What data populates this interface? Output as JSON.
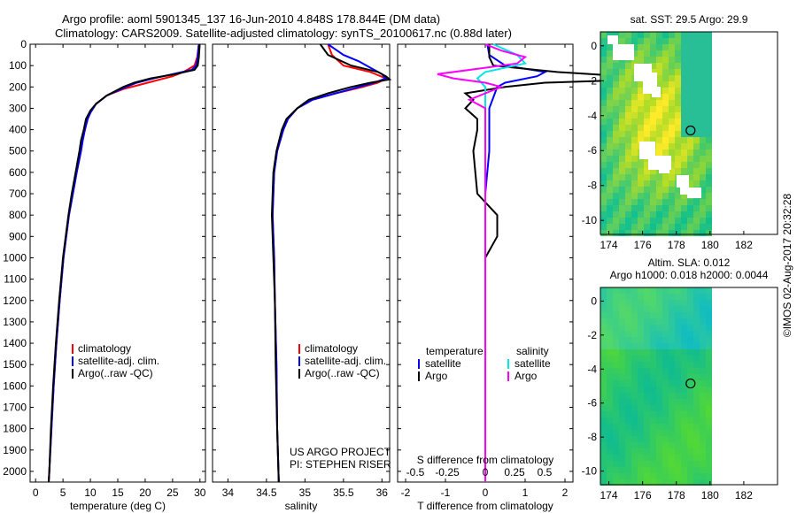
{
  "header": {
    "title_line1": "Argo profile: aoml 5901345_137 16-Jun-2010 4.848S 178.844E (DM data)",
    "title_line2": "Climatology: CARS2009. Satellite-adjusted climatology: synTS_20100617.nc (0.88d later)"
  },
  "depth_ticks": [
    0,
    100,
    200,
    300,
    400,
    500,
    600,
    700,
    800,
    900,
    1000,
    1100,
    1200,
    1300,
    1400,
    1500,
    1600,
    1700,
    1800,
    1900,
    2000
  ],
  "colors": {
    "climatology": "#ff0000",
    "satellite": "#0000ff",
    "argo": "#000000",
    "sat_salinity": "#00e5e5",
    "argo_salinity": "#ff00ff"
  },
  "chart_data": [
    {
      "type": "line",
      "panel": "temperature",
      "xlabel": "temperature (deg C)",
      "xlim": [
        -1,
        31
      ],
      "xticks": [
        0,
        5,
        10,
        15,
        20,
        25,
        30
      ],
      "ylim": [
        2050,
        0
      ],
      "legend": [
        "climatology",
        "satellite-adj. clim.",
        "Argo(..raw -QC)"
      ],
      "series": [
        {
          "name": "climatology",
          "depth": [
            0,
            20,
            60,
            100,
            130,
            150,
            170,
            190,
            210,
            240,
            280,
            320,
            350,
            400,
            450,
            500,
            600,
            700,
            800,
            900,
            1000,
            1200,
            1400,
            1600,
            1800,
            2000,
            2050
          ],
          "values": [
            29.8,
            29.7,
            29.5,
            29.0,
            27.0,
            25.0,
            22.0,
            19.0,
            16.0,
            13.0,
            11.0,
            10.0,
            9.5,
            9.0,
            8.6,
            8.3,
            7.5,
            6.8,
            6.1,
            5.6,
            5.1,
            4.4,
            3.8,
            3.3,
            2.9,
            2.5,
            2.4
          ]
        },
        {
          "name": "satellite-adj. clim.",
          "depth": [
            0,
            20,
            60,
            100,
            120,
            140,
            160,
            180,
            200,
            240,
            280,
            320,
            350,
            400,
            450,
            500,
            600,
            700,
            800,
            900,
            1000,
            1200,
            1400,
            1600,
            1800,
            2000,
            2050
          ],
          "values": [
            29.8,
            29.7,
            29.6,
            29.3,
            28.5,
            25.0,
            21.5,
            18.5,
            16.5,
            13.0,
            11.0,
            10.0,
            9.5,
            9.0,
            8.6,
            8.3,
            7.5,
            6.8,
            6.1,
            5.6,
            5.1,
            4.4,
            3.8,
            3.3,
            2.9,
            2.5,
            2.4
          ]
        },
        {
          "name": "Argo(..raw -QC)",
          "depth": [
            0,
            20,
            60,
            100,
            120,
            140,
            160,
            180,
            200,
            240,
            280,
            310,
            350,
            400,
            450,
            500,
            600,
            700,
            800,
            900,
            1000,
            1200,
            1400,
            1600,
            1800,
            2000,
            2050
          ],
          "values": [
            29.9,
            29.9,
            29.8,
            29.6,
            29.0,
            25.5,
            21.0,
            18.0,
            16.0,
            13.0,
            11.0,
            10.0,
            9.2,
            8.8,
            8.3,
            8.0,
            7.3,
            6.6,
            6.0,
            5.5,
            5.0,
            4.3,
            3.7,
            3.2,
            2.8,
            2.5,
            2.4
          ]
        }
      ]
    },
    {
      "type": "line",
      "panel": "salinity",
      "xlabel": "salinity",
      "xlim": [
        33.8,
        36.1
      ],
      "xticks": [
        34,
        34.5,
        35,
        35.5,
        36
      ],
      "ylim": [
        2050,
        0
      ],
      "legend": [
        "climatology",
        "satellite-adj. clim.",
        "Argo(..raw -QC)"
      ],
      "annotation": [
        "US ARGO PROJECT",
        "PI: STEPHEN RISER"
      ],
      "series": [
        {
          "name": "climatology",
          "depth": [
            0,
            50,
            100,
            130,
            160,
            180,
            200,
            230,
            260,
            300,
            350,
            400,
            500,
            600,
            800,
            1000,
            1200,
            1500,
            1800,
            2050
          ],
          "values": [
            35.3,
            35.35,
            35.5,
            35.85,
            36.05,
            35.95,
            35.75,
            35.4,
            35.1,
            34.9,
            34.78,
            34.72,
            34.64,
            34.6,
            34.58,
            34.6,
            34.61,
            34.63,
            34.64,
            34.66
          ]
        },
        {
          "name": "satellite-adj. clim.",
          "depth": [
            0,
            50,
            80,
            110,
            140,
            160,
            180,
            200,
            230,
            260,
            300,
            350,
            400,
            500,
            600,
            800,
            1000,
            1200,
            1500,
            1800,
            2050
          ],
          "values": [
            35.3,
            35.5,
            35.7,
            35.85,
            36.0,
            36.05,
            35.9,
            35.7,
            35.4,
            35.1,
            34.9,
            34.78,
            34.72,
            34.64,
            34.6,
            34.58,
            34.6,
            34.61,
            34.63,
            34.64,
            34.66
          ]
        },
        {
          "name": "Argo(..raw -QC)",
          "depth": [
            0,
            50,
            100,
            130,
            150,
            165,
            180,
            200,
            230,
            260,
            300,
            350,
            400,
            500,
            600,
            800,
            1000,
            1200,
            1500,
            1800,
            2050
          ],
          "values": [
            35.2,
            35.3,
            35.6,
            35.95,
            36.05,
            36.1,
            35.85,
            35.6,
            35.3,
            35.05,
            34.9,
            34.76,
            34.7,
            34.63,
            34.59,
            34.57,
            34.59,
            34.61,
            34.62,
            34.64,
            34.66
          ]
        }
      ]
    },
    {
      "type": "line",
      "panel": "difference",
      "xlabel_top": "S difference from climatology",
      "xticks_top": [
        -0.5,
        -0.25,
        0,
        0.25,
        0.5
      ],
      "xlabel": "T difference from climatology",
      "xlim": [
        -2.2,
        2.2
      ],
      "xticks": [
        -2,
        -1,
        0,
        1,
        2
      ],
      "ylim": [
        2050,
        0
      ],
      "legend_headers": [
        "temperature",
        "salinity"
      ],
      "legend": [
        "satellite",
        "Argo",
        "satellite",
        "Argo"
      ],
      "series": [
        {
          "name": "satellite",
          "depth": [
            0,
            50,
            100,
            130,
            150,
            180,
            200,
            250,
            300,
            400,
            500,
            700,
            900,
            1200,
            1500,
            1800,
            2050
          ],
          "values": [
            0.05,
            0.1,
            0.5,
            1.5,
            1.3,
            0.5,
            0.3,
            0.2,
            0.1,
            0.1,
            0.1,
            0.0,
            0.0,
            0.0,
            0.0,
            0.0,
            0.0
          ]
        },
        {
          "name": "Argo",
          "depth": [
            0,
            60,
            100,
            130,
            150,
            170,
            180,
            200,
            230,
            260,
            300,
            350,
            400,
            500,
            700,
            800,
            900,
            1000,
            1100,
            1200,
            1400,
            1600,
            1800,
            2050
          ],
          "values": [
            0.1,
            0.1,
            0.2,
            1.8,
            3.5,
            3.2,
            1.5,
            0.5,
            -0.5,
            -0.3,
            -0.5,
            -0.2,
            -0.2,
            -0.3,
            -0.2,
            0.3,
            0.3,
            0.0,
            0.0,
            0.0,
            0.0,
            0.0,
            0.0,
            0.0
          ]
        },
        {
          "name": "satellite",
          "depth": [
            0,
            50,
            90,
            130,
            160,
            200,
            250,
            300,
            400,
            500,
            700,
            900,
            1200,
            1500,
            1800,
            2050
          ],
          "values": [
            0.05,
            0.2,
            0.25,
            0.0,
            -0.05,
            0.0,
            0.0,
            0.0,
            0.0,
            0.0,
            0.0,
            0.0,
            0.0,
            0.0,
            0.0,
            0.0
          ]
        },
        {
          "name": "Argo",
          "depth": [
            0,
            30,
            60,
            90,
            110,
            140,
            160,
            180,
            200,
            230,
            260,
            300,
            350,
            400,
            500,
            700,
            900,
            1200,
            1500,
            1800,
            2050
          ],
          "values": [
            0.0,
            0.1,
            0.25,
            0.2,
            0.0,
            -0.3,
            -0.2,
            0.0,
            0.1,
            0.0,
            -0.1,
            0.0,
            0.0,
            0.0,
            0.0,
            0.0,
            0.0,
            0.0,
            0.0,
            0.0,
            0.0
          ]
        }
      ]
    },
    {
      "type": "heatmap",
      "panel": "sst_map",
      "title": "sat. SST: 29.5 Argo: 29.9",
      "xlim": [
        173.5,
        184
      ],
      "ylim": [
        -10.8,
        0.8
      ],
      "xticks": [
        174,
        176,
        178,
        180,
        182
      ],
      "yticks": [
        0,
        -2,
        -4,
        -6,
        -8,
        -10
      ],
      "data_xlim": [
        173.5,
        180
      ],
      "profile_location": [
        178.844,
        -4.848
      ]
    },
    {
      "type": "heatmap",
      "panel": "sla_map",
      "title_line1": "Altim. SLA: 0.012",
      "title_line2": "Argo h1000: 0.018 h2000: 0.0044",
      "xlim": [
        173.5,
        184
      ],
      "ylim": [
        -10.8,
        0.8
      ],
      "xticks": [
        174,
        176,
        178,
        180,
        182
      ],
      "yticks": [
        0,
        -2,
        -4,
        -6,
        -8,
        -10
      ],
      "data_xlim": [
        173.5,
        180
      ],
      "profile_location": [
        178.844,
        -4.848
      ]
    }
  ],
  "footer": {
    "copyright": "©IMOS 02-Aug-2017 20:32:28"
  }
}
